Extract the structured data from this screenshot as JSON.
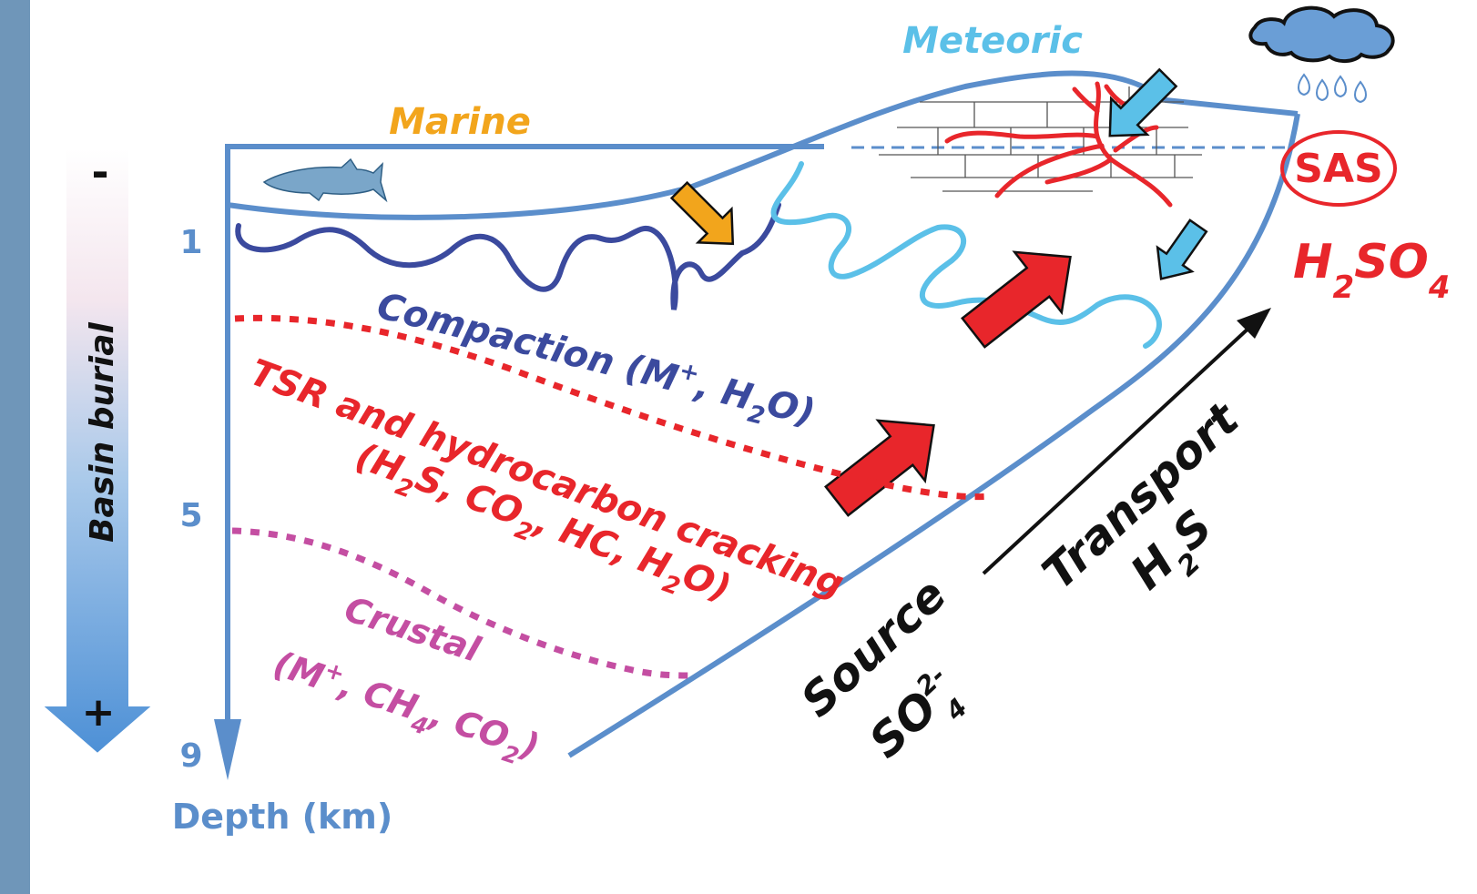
{
  "colors": {
    "frame": "#5b8ecb",
    "left_bar": "#6f96b9",
    "marine": "#f2a51c",
    "meteoric": "#5bc0e8",
    "compaction": "#3b4a9e",
    "tsr": "#e8262b",
    "crustal": "#c44ea2",
    "black": "#111111"
  },
  "depth_axis": {
    "ticks": [
      "1",
      "5",
      "9"
    ],
    "label": "Depth (km)"
  },
  "burial_bar": {
    "label": "Basin burial",
    "minus": "-",
    "plus": "+"
  },
  "labels": {
    "marine": "Marine",
    "meteoric": "Meteoric",
    "compaction": "Compaction (M",
    "compaction_sup": "+",
    "compaction_tail": ", H",
    "compaction_sub": "2",
    "compaction_end": "O)",
    "tsr_line1": "TSR and hydrocarbon cracking",
    "tsr_line2_a": "(H",
    "tsr_line2_sub1": "2",
    "tsr_line2_b": "S, CO",
    "tsr_line2_sub2": "2",
    "tsr_line2_c": ", HC, H",
    "tsr_line2_sub3": "2",
    "tsr_line2_d": "O)",
    "crustal_line1": "Crustal",
    "crustal_a": "(M",
    "crustal_sup": "+",
    "crustal_b": ", CH",
    "crustal_sub1": "4",
    "crustal_c": ", CO",
    "crustal_sub2": "2",
    "crustal_d": ")",
    "source": "Source",
    "so4": "SO",
    "so4_sup": "2-",
    "so4_sub": "4",
    "transport": "Transport",
    "h2s_h": "H",
    "h2s_sub": "2",
    "h2s_s": "S",
    "sas": "SAS",
    "h2so4_h": "H",
    "h2so4_sub1": "2",
    "h2so4_so": "SO",
    "h2so4_sub2": "4"
  }
}
